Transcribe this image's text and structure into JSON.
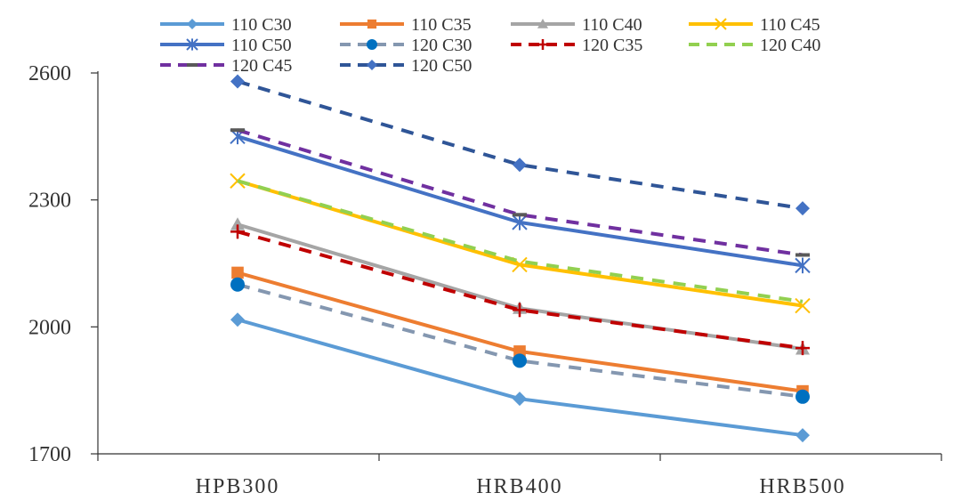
{
  "chart_data": {
    "type": "line",
    "categories": [
      "HPB300",
      "HRB400",
      "HRB500"
    ],
    "ylim": [
      1700,
      2600
    ],
    "yticks": [
      1700,
      2000,
      2300,
      2600
    ],
    "grid": false,
    "legend_position": "top",
    "series": [
      {
        "name": "110 C30",
        "values": [
          2017,
          1830,
          1744
        ],
        "color": "#5B9BD5",
        "dash": "solid",
        "marker": "diamond"
      },
      {
        "name": "110 C35",
        "values": [
          2128,
          1942,
          1848
        ],
        "color": "#ED7D31",
        "dash": "solid",
        "marker": "square"
      },
      {
        "name": "110 C40",
        "values": [
          2242,
          2044,
          1948
        ],
        "color": "#A5A5A5",
        "dash": "solid",
        "marker": "triangle"
      },
      {
        "name": "110 C45",
        "values": [
          2345,
          2147,
          2050
        ],
        "color": "#FFC000",
        "dash": "solid",
        "marker": "x"
      },
      {
        "name": "110 C50",
        "values": [
          2450,
          2247,
          2145
        ],
        "color": "#4472C4",
        "dash": "solid",
        "marker": "star"
      },
      {
        "name": "120 C30",
        "values": [
          2100,
          1920,
          1835
        ],
        "color": "#8497B0",
        "dash": "dashed",
        "marker": "circle",
        "marker_color": "#0070C0"
      },
      {
        "name": "120 C35",
        "values": [
          2225,
          2040,
          1950
        ],
        "color": "#C00000",
        "dash": "dashed",
        "marker": "plus"
      },
      {
        "name": "120 C40",
        "values": [
          2345,
          2155,
          2060
        ],
        "color": "#92D050",
        "dash": "dashed",
        "marker": "none"
      },
      {
        "name": "120 C45",
        "values": [
          2465,
          2265,
          2170
        ],
        "color": "#7030A0",
        "dash": "dashed",
        "marker": "dash",
        "marker_color": "#595959"
      },
      {
        "name": "120 C50",
        "values": [
          2580,
          2383,
          2280
        ],
        "color": "#2F5597",
        "dash": "dashed",
        "marker": "diamond",
        "marker_color": "#4472C4"
      }
    ]
  }
}
